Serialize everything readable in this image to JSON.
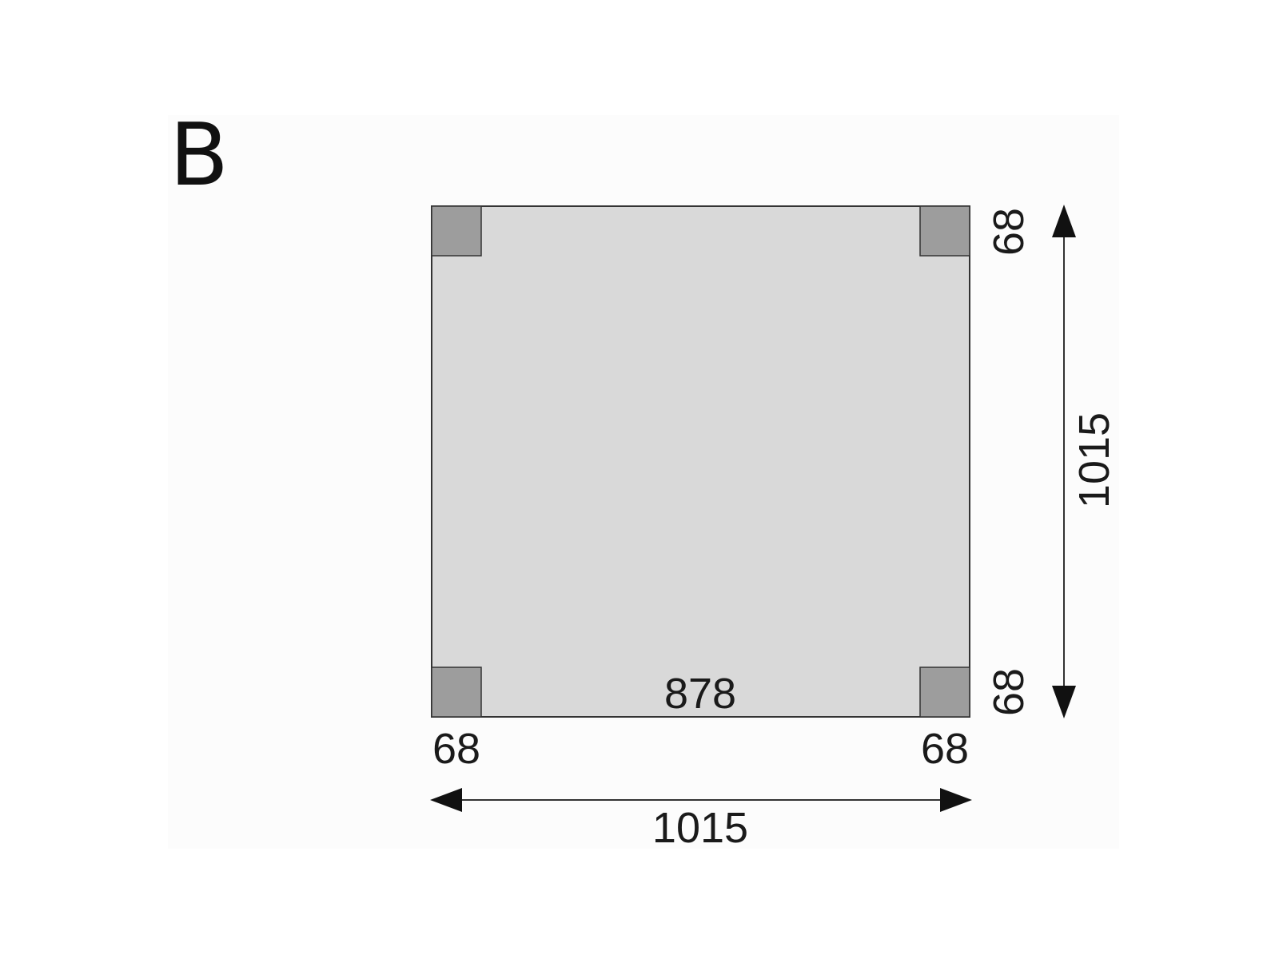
{
  "figure_label": "B",
  "colors": {
    "background": "#ffffff",
    "panel": "#fcfcfc",
    "floor": "#d9d9d9",
    "posts": "#9d9d9d",
    "lines": "#333333"
  },
  "dimensions": {
    "total_width": "1015",
    "total_depth": "1015",
    "inner_span": "878",
    "post_bottom_left": "68",
    "post_bottom_right": "68",
    "post_right_top": "68",
    "post_right_bottom": "68"
  }
}
